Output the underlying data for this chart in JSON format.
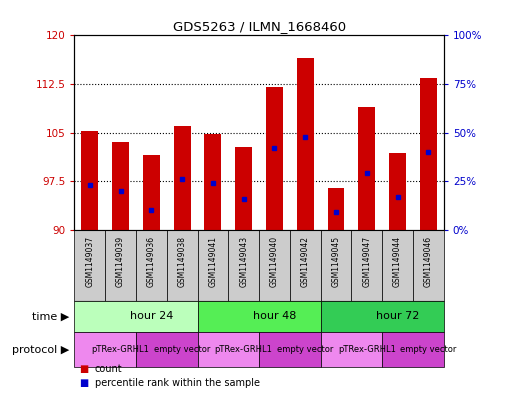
{
  "title": "GDS5263 / ILMN_1668460",
  "samples": [
    "GSM1149037",
    "GSM1149039",
    "GSM1149036",
    "GSM1149038",
    "GSM1149041",
    "GSM1149043",
    "GSM1149040",
    "GSM1149042",
    "GSM1149045",
    "GSM1149047",
    "GSM1149044",
    "GSM1149046"
  ],
  "counts": [
    105.2,
    103.5,
    101.5,
    106.0,
    104.8,
    102.8,
    112.0,
    116.5,
    96.5,
    109.0,
    101.8,
    113.5
  ],
  "percentiles": [
    23,
    20,
    10,
    26,
    24,
    16,
    42,
    48,
    9,
    29,
    17,
    40
  ],
  "ylim_left": [
    90,
    120
  ],
  "ylim_right": [
    0,
    100
  ],
  "yticks_left": [
    90,
    97.5,
    105,
    112.5,
    120
  ],
  "yticks_right": [
    0,
    25,
    50,
    75,
    100
  ],
  "bar_color": "#cc0000",
  "dot_color": "#0000cc",
  "bar_bottom": 90,
  "time_groups": [
    {
      "label": "hour 24",
      "start": 0,
      "end": 4,
      "color": "#bbffbb"
    },
    {
      "label": "hour 48",
      "start": 4,
      "end": 8,
      "color": "#55ee55"
    },
    {
      "label": "hour 72",
      "start": 8,
      "end": 12,
      "color": "#33cc55"
    }
  ],
  "protocol_groups": [
    {
      "label": "pTRex-GRHL1",
      "start": 0,
      "end": 2,
      "color": "#ee88ee"
    },
    {
      "label": "empty vector",
      "start": 2,
      "end": 4,
      "color": "#cc44cc"
    },
    {
      "label": "pTRex-GRHL1",
      "start": 4,
      "end": 6,
      "color": "#ee88ee"
    },
    {
      "label": "empty vector",
      "start": 6,
      "end": 8,
      "color": "#cc44cc"
    },
    {
      "label": "pTRex-GRHL1",
      "start": 8,
      "end": 10,
      "color": "#ee88ee"
    },
    {
      "label": "empty vector",
      "start": 10,
      "end": 12,
      "color": "#cc44cc"
    }
  ],
  "sample_bg_color": "#cccccc",
  "time_label": "time",
  "protocol_label": "protocol",
  "legend_count_color": "#cc0000",
  "legend_percentile_color": "#0000cc",
  "bar_width": 0.55
}
